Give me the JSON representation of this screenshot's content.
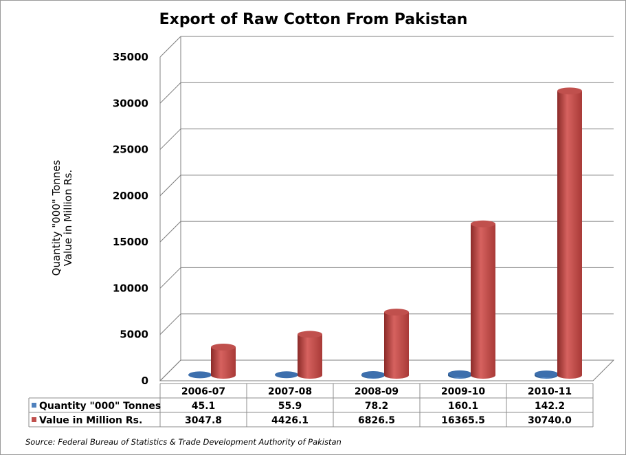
{
  "chart_data": {
    "type": "bar",
    "title": "Export of Raw Cotton From Pakistan",
    "ylabel": "Quantity \"000\" Tonnes Value in Million Rs.",
    "ylabel_lines": [
      "Quantity \"000\" Tonnes",
      "Value in Million Rs."
    ],
    "categories": [
      "2006-07",
      "2007-08",
      "2008-09",
      "2009-10",
      "2010-11"
    ],
    "series": [
      {
        "name": "Quantity \"000\" Tonnes",
        "values": [
          45.1,
          55.9,
          78.2,
          160.1,
          142.2
        ],
        "labels": [
          "45.1",
          "55.9",
          "78.2",
          "160.1",
          "142.2"
        ],
        "color": "#4f81bd"
      },
      {
        "name": "Value in Million Rs.",
        "values": [
          3047.8,
          4426.1,
          6826.5,
          16365.5,
          30740.0
        ],
        "labels": [
          "3047.8",
          "4426.1",
          "6826.5",
          "16365.5",
          "30740.0"
        ],
        "color": "#c0504d"
      }
    ],
    "ylim": [
      0,
      35000
    ],
    "yticks": [
      0,
      5000,
      10000,
      15000,
      20000,
      25000,
      30000,
      35000
    ],
    "grid": true,
    "legend": "data-table",
    "source": "Source: Federal Bureau of Statistics & Trade Development Authority of Pakistan"
  }
}
